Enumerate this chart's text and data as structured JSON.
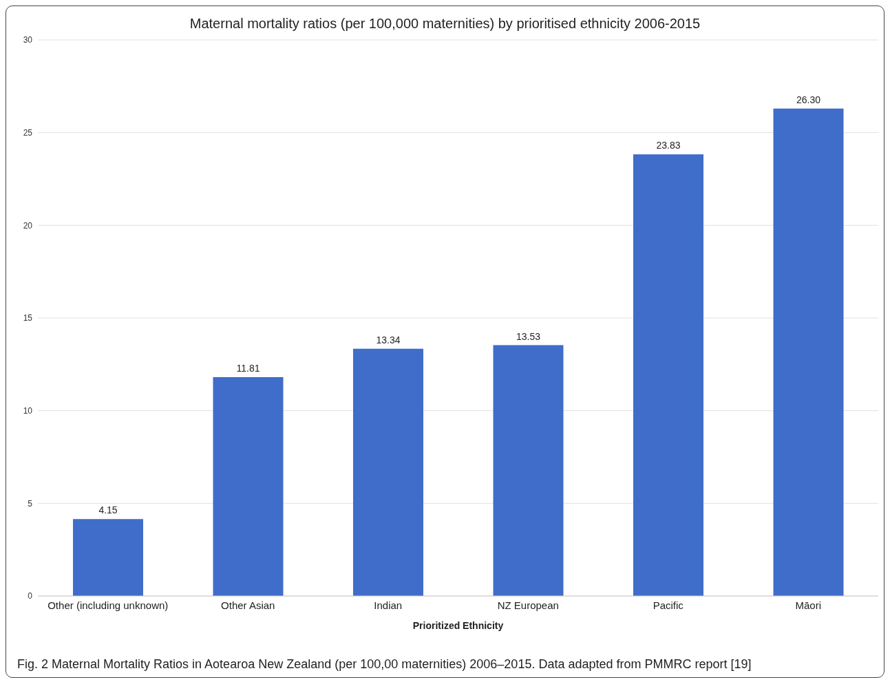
{
  "chart_data": {
    "type": "bar",
    "title": "Maternal mortality ratios (per 100,000 maternities) by prioritised ethnicity 2006-2015",
    "xlabel": "Prioritized Ethnicity",
    "categories": [
      "Other (including unknown)",
      "Other Asian",
      "Indian",
      "NZ European",
      "Pacific",
      "Māori"
    ],
    "values": [
      4.15,
      11.81,
      13.34,
      13.53,
      23.83,
      26.3
    ],
    "value_labels": [
      "4.15",
      "11.81",
      "13.34",
      "13.53",
      "23.83",
      "26.30"
    ],
    "color": "#3f6dc9",
    "ylim": [
      0,
      30
    ],
    "yticks": [
      0,
      5,
      10,
      15,
      20,
      25,
      30
    ],
    "grid": "y",
    "annotations": [
      "Fig. 2 Maternal Mortality Ratios in Aotearoa New Zealand (per 100,00 maternities) 2006–2015. Data adapted from PMMRC report [19]"
    ]
  }
}
